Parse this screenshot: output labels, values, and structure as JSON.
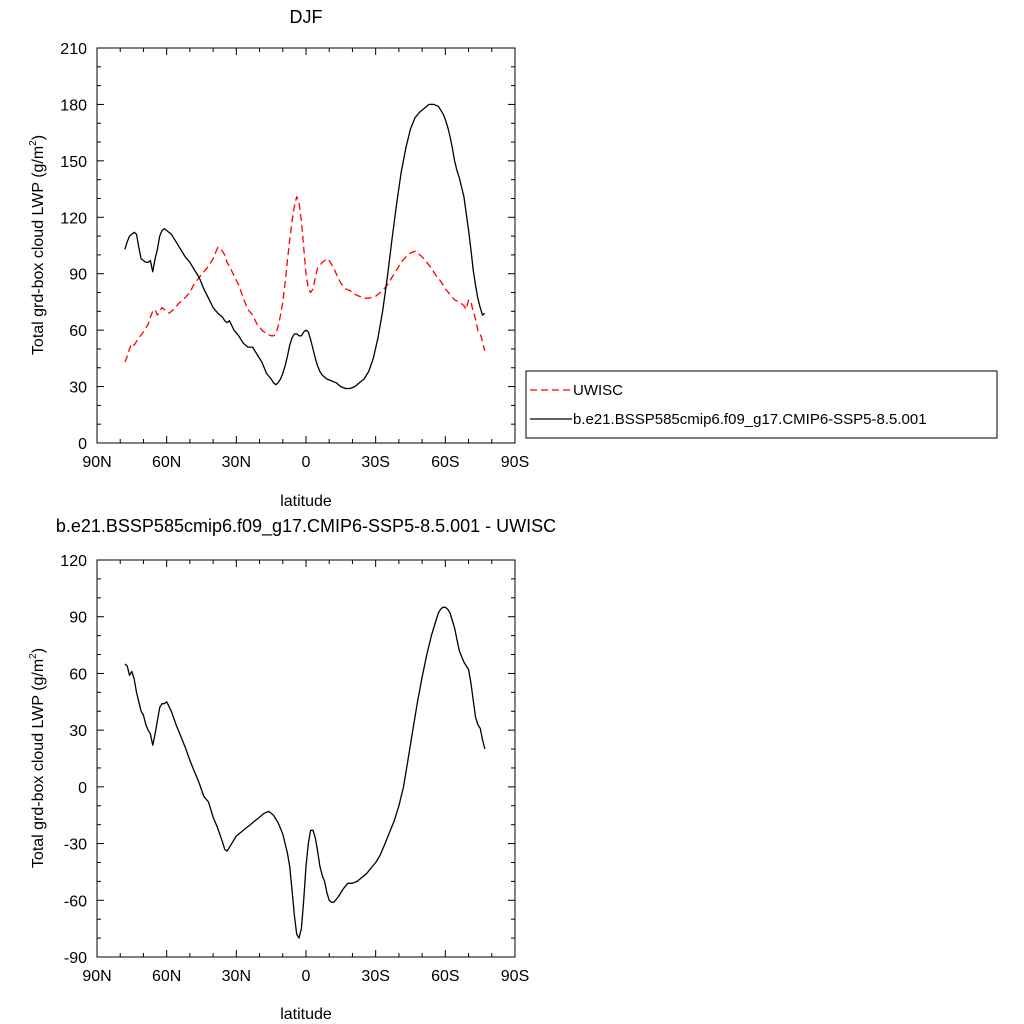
{
  "chart_data": [
    {
      "type": "line",
      "title": "DJF",
      "xlabel": "latitude",
      "ylabel": "Total grd-box cloud LWP (g/m",
      "ylabel_sup": "2",
      "ylabel_tail": ")",
      "xlim": [
        90,
        -90
      ],
      "ylim": [
        0,
        210
      ],
      "xticks": [
        90,
        60,
        30,
        0,
        -30,
        -60,
        -90
      ],
      "xtick_labels": [
        "90N",
        "60N",
        "30N",
        "0",
        "30S",
        "60S",
        "90S"
      ],
      "yticks": [
        0,
        30,
        60,
        90,
        120,
        150,
        180,
        210
      ],
      "ytick_labels": [
        "0",
        "30",
        "60",
        "90",
        "120",
        "150",
        "180",
        "210"
      ],
      "grid": false,
      "legend_position": "right",
      "series": [
        {
          "name": "UWISC",
          "color": "#ff0000",
          "dash": "dashed",
          "x": [
            78,
            77,
            76,
            75,
            74,
            72,
            70,
            68,
            67,
            66,
            65,
            64,
            63,
            62,
            61,
            60,
            59,
            57,
            55,
            53,
            50,
            48,
            46,
            44,
            42,
            40,
            39,
            38,
            37,
            36,
            35,
            34,
            33,
            31,
            29,
            27,
            25,
            23,
            21,
            19,
            17,
            15,
            14,
            13,
            12,
            11,
            10,
            9,
            8,
            7,
            6,
            5,
            4,
            3,
            2,
            1,
            0,
            -1,
            -2,
            -3,
            -4,
            -5,
            -7,
            -9,
            -10,
            -11,
            -12,
            -13,
            -15,
            -17,
            -19,
            -21,
            -23,
            -25,
            -27,
            -30,
            -33,
            -35,
            -37,
            -39,
            -41,
            -43,
            -45,
            -47,
            -48,
            -50,
            -52,
            -54,
            -56,
            -58,
            -60,
            -62,
            -64,
            -66,
            -68,
            -69,
            -70,
            -71,
            -72,
            -73,
            -74,
            -75,
            -76,
            -77
          ],
          "y": [
            43,
            46,
            50,
            53,
            52,
            56,
            59,
            63,
            67,
            70,
            71,
            68,
            70,
            72,
            71,
            70,
            69,
            71,
            74,
            76,
            80,
            85,
            88,
            91,
            94,
            98,
            101,
            104,
            103,
            102,
            100,
            96,
            94,
            89,
            84,
            77,
            71,
            68,
            63,
            60,
            58,
            57,
            57,
            58,
            62,
            68,
            75,
            85,
            97,
            108,
            118,
            126,
            131,
            128,
            118,
            104,
            90,
            82,
            80,
            82,
            88,
            93,
            96,
            98,
            97,
            95,
            93,
            90,
            85,
            82,
            81,
            79,
            78,
            77,
            77,
            78,
            81,
            84,
            88,
            92,
            96,
            99,
            101,
            102,
            101,
            99,
            96,
            93,
            89,
            86,
            82,
            79,
            76,
            75,
            73,
            71,
            76,
            75,
            70,
            66,
            60,
            58,
            54,
            49
          ]
        },
        {
          "name": "b.e21.BSSP585cmip6.f09_g17.CMIP6-SSP5-8.5.001",
          "color": "#000000",
          "dash": "solid",
          "x": [
            78,
            77,
            76,
            75,
            74,
            73,
            72,
            71,
            70,
            69,
            68,
            67,
            66,
            65,
            64,
            63,
            62,
            61,
            60,
            58,
            56,
            54,
            52,
            50,
            48,
            46,
            44,
            42,
            40,
            38,
            36,
            35,
            34,
            33,
            31,
            29,
            27,
            25,
            23,
            21,
            19,
            17,
            15,
            14,
            13,
            12,
            11,
            10,
            9,
            8,
            7,
            6,
            5,
            4,
            3,
            2,
            1,
            0,
            -1,
            -2,
            -3,
            -4,
            -5,
            -6,
            -7,
            -9,
            -11,
            -13,
            -15,
            -17,
            -19,
            -21,
            -23,
            -25,
            -27,
            -29,
            -31,
            -33,
            -35,
            -37,
            -39,
            -41,
            -43,
            -45,
            -47,
            -49,
            -51,
            -53,
            -55,
            -57,
            -58,
            -59,
            -60,
            -61,
            -62,
            -63,
            -64,
            -65,
            -66,
            -68,
            -70,
            -71,
            -72,
            -73,
            -74,
            -75,
            -76,
            -77
          ],
          "y": [
            103,
            107,
            110,
            111,
            112,
            111,
            104,
            98,
            97,
            96,
            96,
            97,
            91,
            98,
            103,
            110,
            113,
            114,
            113,
            111,
            107,
            103,
            99,
            96,
            92,
            88,
            82,
            77,
            72,
            69,
            67,
            65,
            64,
            65,
            60,
            57,
            53,
            51,
            51,
            47,
            43,
            37,
            34,
            32,
            31,
            32,
            34,
            37,
            41,
            46,
            52,
            56,
            58,
            58,
            57,
            57,
            59,
            60,
            59,
            55,
            50,
            45,
            41,
            38,
            36,
            34,
            33,
            32,
            30,
            29,
            29,
            30,
            32,
            34,
            38,
            45,
            56,
            70,
            88,
            108,
            127,
            144,
            157,
            167,
            173,
            176,
            178,
            180,
            180,
            179,
            177,
            175,
            172,
            168,
            163,
            157,
            150,
            145,
            141,
            131,
            113,
            103,
            92,
            84,
            77,
            72,
            68,
            69
          ]
        }
      ]
    },
    {
      "type": "line",
      "title": "b.e21.BSSP585cmip6.f09_g17.CMIP6-SSP5-8.5.001 - UWISC",
      "xlabel": "latitude",
      "ylabel": "Total grd-box cloud LWP (g/m",
      "ylabel_sup": "2",
      "ylabel_tail": ")",
      "xlim": [
        90,
        -90
      ],
      "ylim": [
        -90,
        120
      ],
      "xticks": [
        90,
        60,
        30,
        0,
        -30,
        -60,
        -90
      ],
      "xtick_labels": [
        "90N",
        "60N",
        "30N",
        "0",
        "30S",
        "60S",
        "90S"
      ],
      "yticks": [
        -90,
        -60,
        -30,
        0,
        30,
        60,
        90,
        120
      ],
      "ytick_labels": [
        "-90",
        "-60",
        "-30",
        "0",
        "30",
        "60",
        "90",
        "120"
      ],
      "grid": false,
      "series": [
        {
          "color": "#000000",
          "dash": "solid",
          "x": [
            78,
            77,
            76,
            75,
            74,
            73,
            72,
            71,
            70,
            69,
            68,
            67,
            66,
            65,
            64,
            63,
            62,
            61,
            60,
            58,
            56,
            54,
            52,
            50,
            48,
            46,
            44,
            42,
            40,
            38,
            36,
            35,
            34,
            33,
            32,
            30,
            28,
            26,
            24,
            22,
            20,
            18,
            16,
            14,
            13,
            12,
            11,
            10,
            9,
            8,
            7,
            6,
            5,
            4,
            3,
            2,
            1,
            0,
            -1,
            -2,
            -3,
            -4,
            -5,
            -6,
            -7,
            -8,
            -9,
            -10,
            -11,
            -12,
            -14,
            -16,
            -18,
            -20,
            -22,
            -24,
            -26,
            -28,
            -30,
            -32,
            -34,
            -36,
            -38,
            -40,
            -42,
            -44,
            -46,
            -48,
            -50,
            -52,
            -54,
            -56,
            -57,
            -58,
            -59,
            -60,
            -61,
            -62,
            -63,
            -64,
            -65,
            -66,
            -68,
            -70,
            -71,
            -72,
            -73,
            -74,
            -75,
            -76,
            -77
          ],
          "y": [
            65,
            64,
            59,
            61,
            57,
            50,
            45,
            40,
            38,
            33,
            30,
            28,
            22,
            28,
            35,
            42,
            44,
            44,
            45,
            40,
            33,
            27,
            21,
            14,
            8,
            2,
            -5,
            -8,
            -16,
            -22,
            -29,
            -33,
            -34,
            -32,
            -30,
            -26,
            -24,
            -22,
            -20,
            -18,
            -16,
            -14,
            -13,
            -15,
            -17,
            -19,
            -22,
            -25,
            -30,
            -35,
            -42,
            -55,
            -68,
            -78,
            -80,
            -75,
            -60,
            -42,
            -30,
            -23,
            -23,
            -27,
            -34,
            -42,
            -47,
            -50,
            -56,
            -60,
            -61,
            -61,
            -58,
            -54,
            -51,
            -51,
            -50,
            -48,
            -46,
            -43,
            -40,
            -36,
            -30,
            -24,
            -18,
            -10,
            0,
            15,
            30,
            45,
            58,
            70,
            80,
            88,
            92,
            94,
            95,
            95,
            94,
            92,
            88,
            84,
            78,
            72,
            66,
            62,
            55,
            46,
            37,
            33,
            31,
            25,
            20
          ]
        }
      ]
    }
  ]
}
